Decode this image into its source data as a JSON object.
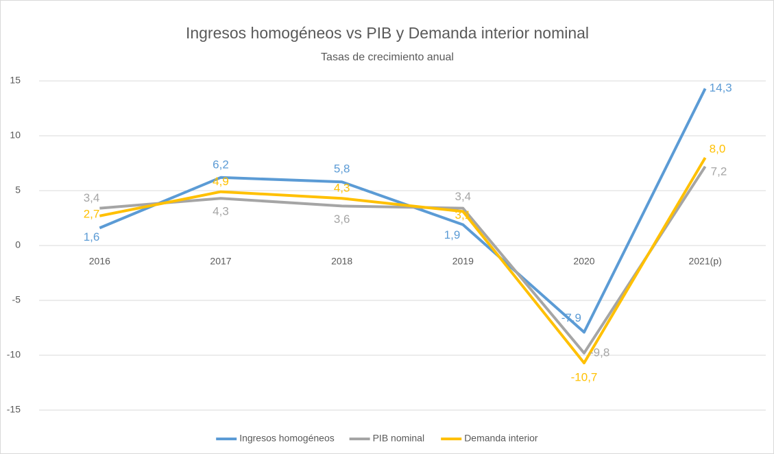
{
  "chart_data": {
    "type": "line",
    "title": "Ingresos homogéneos vs PIB y Demanda interior nominal",
    "subtitle": "Tasas de crecimiento anual",
    "categories": [
      "2016",
      "2017",
      "2018",
      "2019",
      "2020",
      "2021(p)"
    ],
    "series": [
      {
        "name": "Ingresos homogéneos",
        "color": "#5b9bd5",
        "values": [
          1.6,
          6.2,
          5.8,
          1.9,
          -7.9,
          14.3
        ],
        "value_labels": [
          "1,6",
          "6,2",
          "5,8",
          "1,9",
          "-7,9",
          "14,3"
        ]
      },
      {
        "name": "PIB nominal",
        "color": "#a5a5a5",
        "values": [
          3.4,
          4.3,
          3.6,
          3.4,
          -9.8,
          7.2
        ],
        "value_labels": [
          "3,4",
          "4,3",
          "3,6",
          "3,4",
          "-9,8",
          "7,2"
        ]
      },
      {
        "name": "Demanda interior",
        "color": "#ffc000",
        "values": [
          2.7,
          4.9,
          4.3,
          3.1,
          -10.7,
          8.0
        ],
        "value_labels": [
          "2,7",
          "4,9",
          "4,3",
          "3,1",
          "-10,7",
          "8,0"
        ]
      }
    ],
    "ylim": [
      -15,
      15
    ],
    "yticks": [
      15,
      10,
      5,
      0,
      -5,
      -10,
      -15
    ],
    "grid": true,
    "legend": "bottom"
  }
}
